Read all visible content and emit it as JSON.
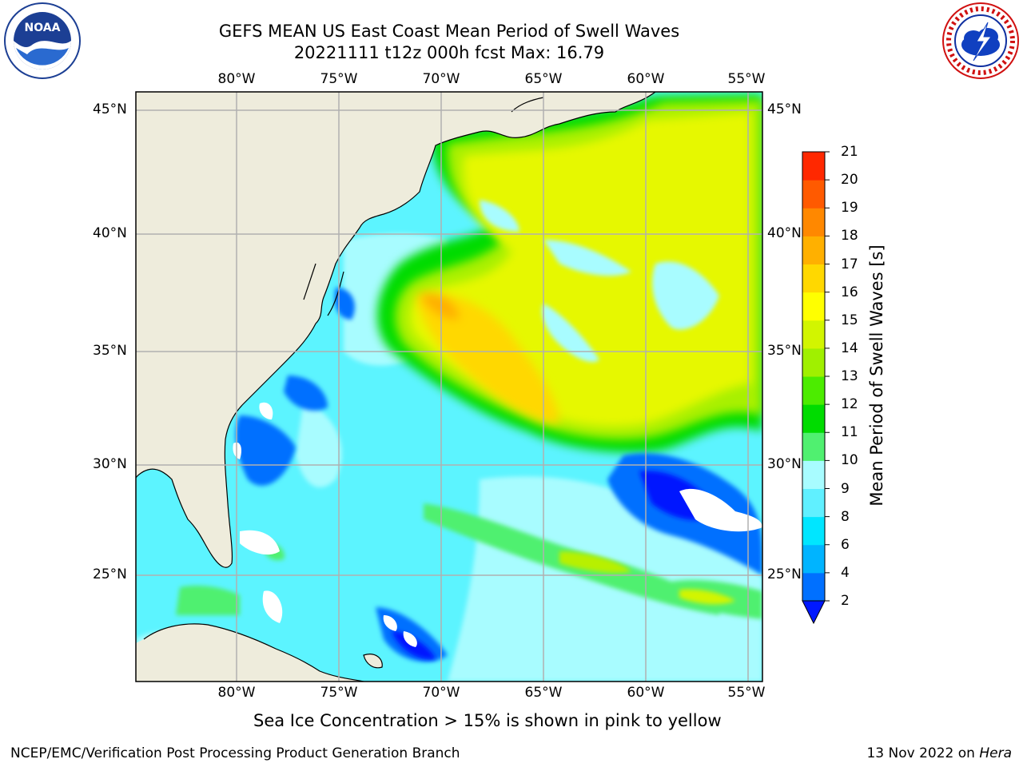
{
  "header": {
    "title_line1": "GEFS MEAN US East Coast Mean Period of Swell Waves",
    "title_line2": "20221111 t12z 000h fcst   Max: 16.79"
  },
  "logos": {
    "left": {
      "icon": "noaa-logo-icon",
      "text": "NOAA",
      "ring": "NATIONAL OCEANIC AND ATMOSPHERIC ADMINISTRATION · U.S. DEPARTMENT OF COMMERCE"
    },
    "right": {
      "icon": "nws-logo-icon",
      "ring": "NATIONAL WEATHER SERVICE"
    }
  },
  "map": {
    "lon_ticks": [
      "80°W",
      "75°W",
      "70°W",
      "65°W",
      "60°W",
      "55°W"
    ],
    "lat_ticks": [
      "45°N",
      "40°N",
      "35°N",
      "30°N",
      "25°N"
    ],
    "land_color": "#eeecdc",
    "grid_color": "#b0b0b0",
    "sea_ice_note": "Sea Ice Concentration > 15% is shown in pink to yellow"
  },
  "colorbar": {
    "label": "Mean Period of Swell Waves [s]",
    "ticks": [
      "2",
      "4",
      "6",
      "8",
      "9",
      "10",
      "11",
      "12",
      "13",
      "14",
      "15",
      "16",
      "17",
      "18",
      "19",
      "20",
      "21"
    ],
    "colors": [
      "#0070ff",
      "#00b4ff",
      "#00e6ff",
      "#60f0ff",
      "#a8fcff",
      "#50f070",
      "#00dc00",
      "#4cec00",
      "#a0f000",
      "#d2f500",
      "#ffff00",
      "#ffd800",
      "#ffb000",
      "#ff8800",
      "#ff5a00",
      "#ff2800",
      "#ff0000"
    ],
    "under_color": "#0018ff"
  },
  "footer": {
    "left": "NCEP/EMC/Verification Post Processing Product Generation Branch",
    "date": "13 Nov 2022 on ",
    "machine": "Hera"
  }
}
